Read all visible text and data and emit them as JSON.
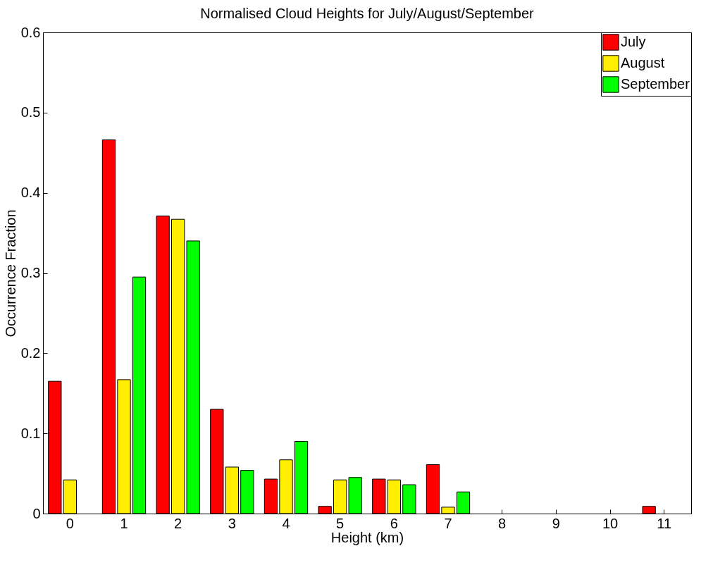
{
  "chart_data": {
    "type": "bar",
    "title": "Normalised Cloud Heights for July/August/September",
    "xlabel": "Height (km)",
    "ylabel": "Occurrence Fraction",
    "categories": [
      "0",
      "1",
      "2",
      "3",
      "4",
      "5",
      "6",
      "7",
      "8",
      "9",
      "10",
      "11"
    ],
    "series": [
      {
        "name": "July",
        "color": "#ff0000",
        "values": [
          0.165,
          0.466,
          0.371,
          0.13,
          0.043,
          0.009,
          0.043,
          0.061,
          null,
          null,
          null,
          0.009
        ]
      },
      {
        "name": "August",
        "color": "#ffee00",
        "values": [
          0.042,
          0.167,
          0.367,
          0.058,
          0.067,
          0.042,
          0.042,
          0.008,
          null,
          null,
          null,
          null
        ]
      },
      {
        "name": "September",
        "color": "#00ff00",
        "values": [
          null,
          0.295,
          0.34,
          0.054,
          0.09,
          0.045,
          0.036,
          0.027,
          null,
          null,
          null,
          null
        ]
      }
    ],
    "ylim": [
      0,
      0.6
    ],
    "yticks": [
      0,
      0.1,
      0.2,
      0.3,
      0.4,
      0.5,
      0.6
    ],
    "grid": false,
    "legend": "top right"
  }
}
